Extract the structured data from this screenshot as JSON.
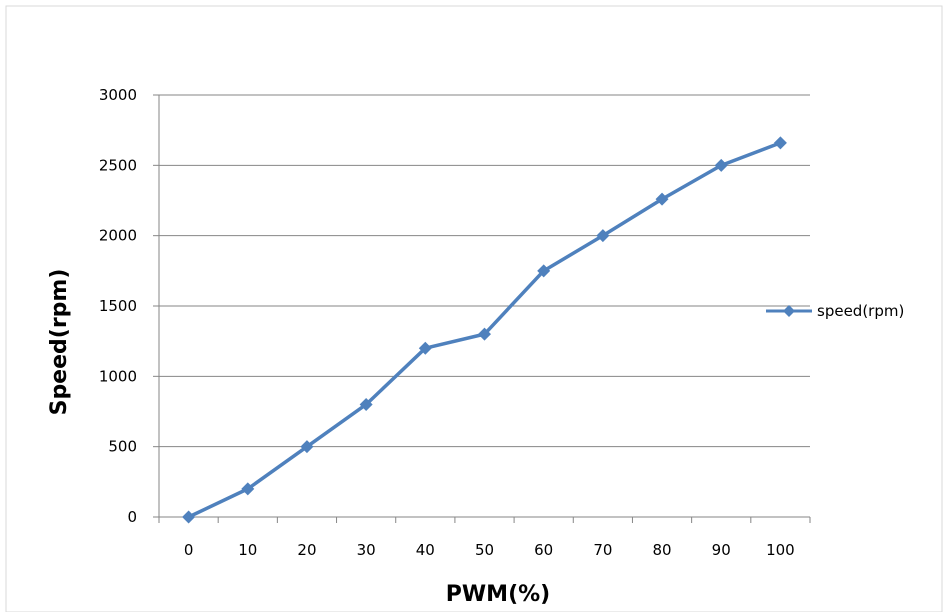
{
  "chart_data": {
    "type": "line",
    "title": "",
    "xlabel": "PWM(%)",
    "ylabel": "Speed(rpm)",
    "categories": [
      "0",
      "10",
      "20",
      "30",
      "40",
      "50",
      "60",
      "70",
      "80",
      "90",
      "100"
    ],
    "series": [
      {
        "name": "speed(rpm)",
        "color": "#4F81BD",
        "marker": "diamond",
        "values": [
          0,
          200,
          500,
          800,
          1200,
          1300,
          1750,
          2000,
          2260,
          2500,
          2660
        ]
      }
    ],
    "ylim": [
      0,
      3000
    ],
    "yticks": [
      0,
      500,
      1000,
      1500,
      2000,
      2500,
      3000
    ],
    "grid": true,
    "legend_position": "right"
  }
}
